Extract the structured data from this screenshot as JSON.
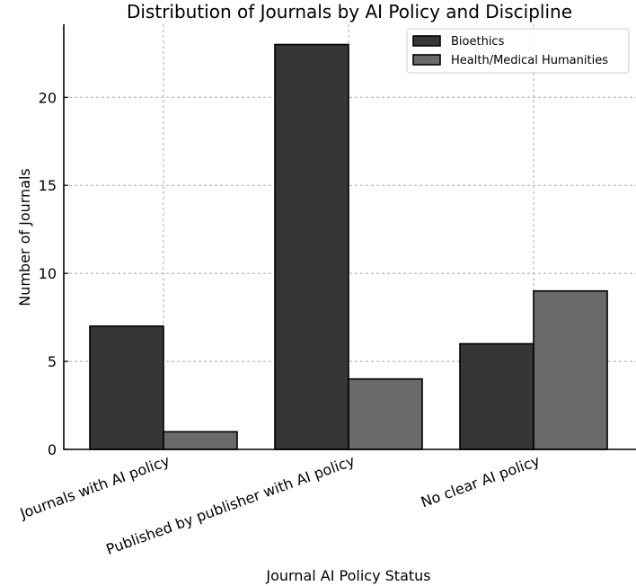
{
  "chart_data": {
    "type": "bar",
    "title": "Distribution of Journals by AI Policy and Discipline",
    "xlabel": "Journal AI Policy Status",
    "ylabel": "Number of Journals",
    "categories": [
      "Journals with AI policy",
      "Published by publisher with AI policy",
      "No clear AI policy"
    ],
    "series": [
      {
        "name": "Bioethics",
        "values": [
          7,
          23,
          6
        ],
        "color": "#363636"
      },
      {
        "name": "Health/Medical Humanities",
        "values": [
          1,
          4,
          9
        ],
        "color": "#6a6a6a"
      }
    ],
    "ylim": [
      0,
      24.15
    ],
    "yticks": [
      0,
      5,
      10,
      15,
      20
    ],
    "grid": true,
    "legend_position": "top-right"
  }
}
